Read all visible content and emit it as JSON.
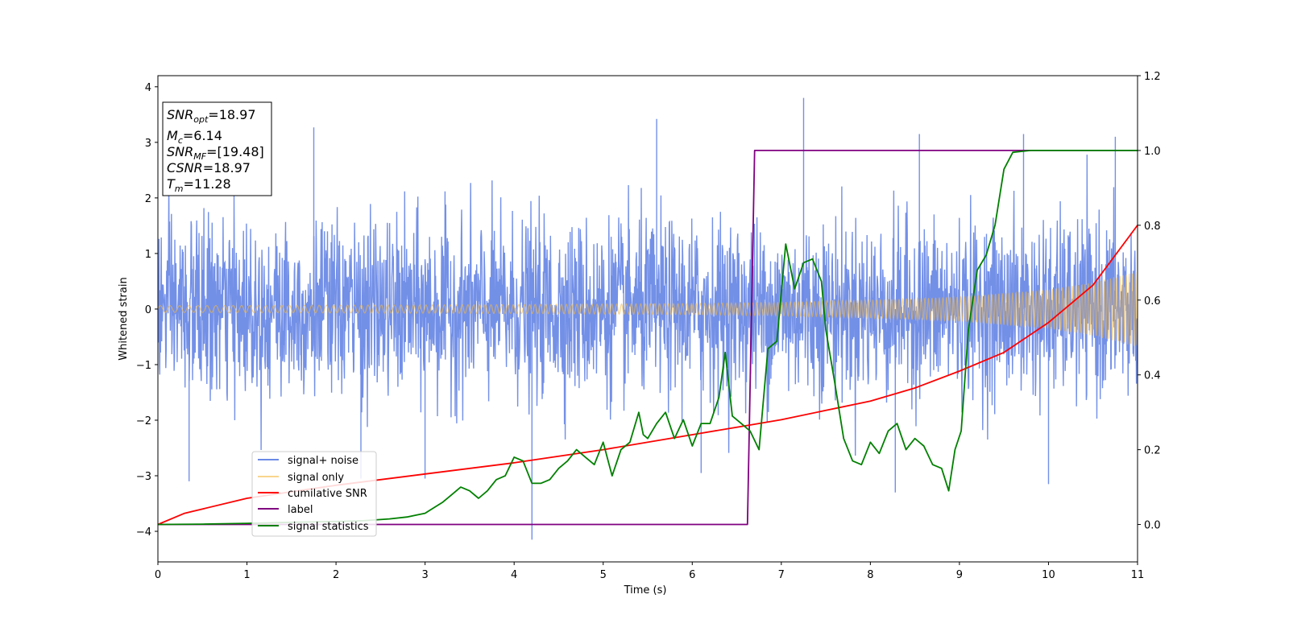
{
  "chart_data": {
    "type": "line",
    "xlabel": "Time (s)",
    "ylabel_left": "Whitened strain",
    "ylabel_right": "",
    "xlim": [
      0,
      11
    ],
    "ylim_left": [
      -4.55,
      4.2
    ],
    "ylim_right": [
      -0.1,
      1.2
    ],
    "xticks": [
      "0",
      "1",
      "2",
      "3",
      "4",
      "5",
      "6",
      "7",
      "8",
      "9",
      "10",
      "11"
    ],
    "yticks_left": [
      "−4",
      "−3",
      "−2",
      "−1",
      "0",
      "1",
      "2",
      "3",
      "4"
    ],
    "yticks_right": [
      "0.0",
      "0.2",
      "0.4",
      "0.6",
      "0.8",
      "1.0",
      "1.2"
    ],
    "legend_position": "lower-left",
    "info_box": {
      "snr_opt": {
        "sym": "SNR",
        "sub": "opt",
        "value": "=18.97"
      },
      "mc": {
        "sym": "M",
        "sub": "c",
        "value": "=6.14"
      },
      "snr_mf": {
        "sym": "SNR",
        "sub": "MF",
        "value": "=[19.48]"
      },
      "csnr": {
        "sym": "CSNR",
        "value": "=18.97"
      },
      "tm": {
        "sym": "T",
        "sub": "m",
        "value": "=11.28"
      }
    },
    "series": [
      {
        "name": "signal+ noise",
        "axis": "left",
        "color": "#6b8ae6",
        "style": "dense noise band, roughly ±1.8 envelope with spikes to about ±3.3, max ≈3.8 at t≈7.25, min ≈−4.15 at t≈4.2"
      },
      {
        "name": "signal only",
        "axis": "left",
        "color": "#f5b942",
        "amplitude_envelope": {
          "x": [
            0,
            2,
            4,
            6,
            7,
            8,
            9,
            10,
            10.5,
            11
          ],
          "y": [
            0.06,
            0.07,
            0.08,
            0.1,
            0.12,
            0.16,
            0.22,
            0.35,
            0.48,
            0.68
          ]
        }
      },
      {
        "name": "cumilative SNR",
        "axis": "right",
        "color": "#ff0000",
        "x": [
          0,
          0.3,
          1,
          2,
          3,
          4,
          5,
          6,
          6.5,
          7,
          7.5,
          8,
          8.5,
          9,
          9.5,
          10,
          10.5,
          11
        ],
        "y": [
          0.0,
          0.03,
          0.07,
          0.105,
          0.135,
          0.165,
          0.2,
          0.24,
          0.26,
          0.28,
          0.305,
          0.33,
          0.365,
          0.41,
          0.46,
          0.54,
          0.64,
          0.8
        ]
      },
      {
        "name": "label",
        "axis": "right",
        "color": "#800080",
        "x": [
          0,
          6.62,
          6.7,
          11
        ],
        "y": [
          0,
          0,
          1,
          1
        ]
      },
      {
        "name": "signal statistics",
        "axis": "right",
        "color": "#008000",
        "x": [
          0,
          0.5,
          1,
          1.5,
          2,
          2.3,
          2.6,
          2.8,
          2.9,
          3.0,
          3.1,
          3.2,
          3.3,
          3.4,
          3.5,
          3.6,
          3.7,
          3.8,
          3.9,
          4.0,
          4.1,
          4.2,
          4.3,
          4.4,
          4.5,
          4.6,
          4.7,
          4.8,
          4.9,
          5.0,
          5.1,
          5.2,
          5.3,
          5.4,
          5.45,
          5.5,
          5.6,
          5.7,
          5.8,
          5.9,
          6.0,
          6.1,
          6.2,
          6.3,
          6.37,
          6.45,
          6.55,
          6.65,
          6.75,
          6.85,
          6.95,
          7.05,
          7.15,
          7.25,
          7.35,
          7.45,
          7.5,
          7.6,
          7.7,
          7.8,
          7.9,
          8.0,
          8.1,
          8.2,
          8.3,
          8.4,
          8.5,
          8.6,
          8.7,
          8.8,
          8.88,
          8.95,
          9.02,
          9.1,
          9.2,
          9.3,
          9.4,
          9.5,
          9.6,
          9.8,
          10,
          10.5,
          11
        ],
        "y": [
          0.0,
          0.001,
          0.003,
          0.006,
          0.008,
          0.01,
          0.015,
          0.02,
          0.025,
          0.03,
          0.045,
          0.06,
          0.08,
          0.1,
          0.09,
          0.07,
          0.09,
          0.12,
          0.13,
          0.18,
          0.17,
          0.11,
          0.11,
          0.12,
          0.15,
          0.17,
          0.2,
          0.18,
          0.16,
          0.22,
          0.13,
          0.2,
          0.22,
          0.3,
          0.24,
          0.23,
          0.27,
          0.3,
          0.23,
          0.28,
          0.21,
          0.27,
          0.27,
          0.34,
          0.46,
          0.29,
          0.27,
          0.25,
          0.2,
          0.47,
          0.49,
          0.75,
          0.63,
          0.7,
          0.71,
          0.65,
          0.52,
          0.38,
          0.23,
          0.17,
          0.16,
          0.22,
          0.19,
          0.25,
          0.27,
          0.2,
          0.23,
          0.21,
          0.16,
          0.15,
          0.09,
          0.2,
          0.25,
          0.52,
          0.68,
          0.72,
          0.8,
          0.95,
          0.995,
          1.0,
          1.0,
          1.0,
          1.0
        ]
      }
    ]
  }
}
